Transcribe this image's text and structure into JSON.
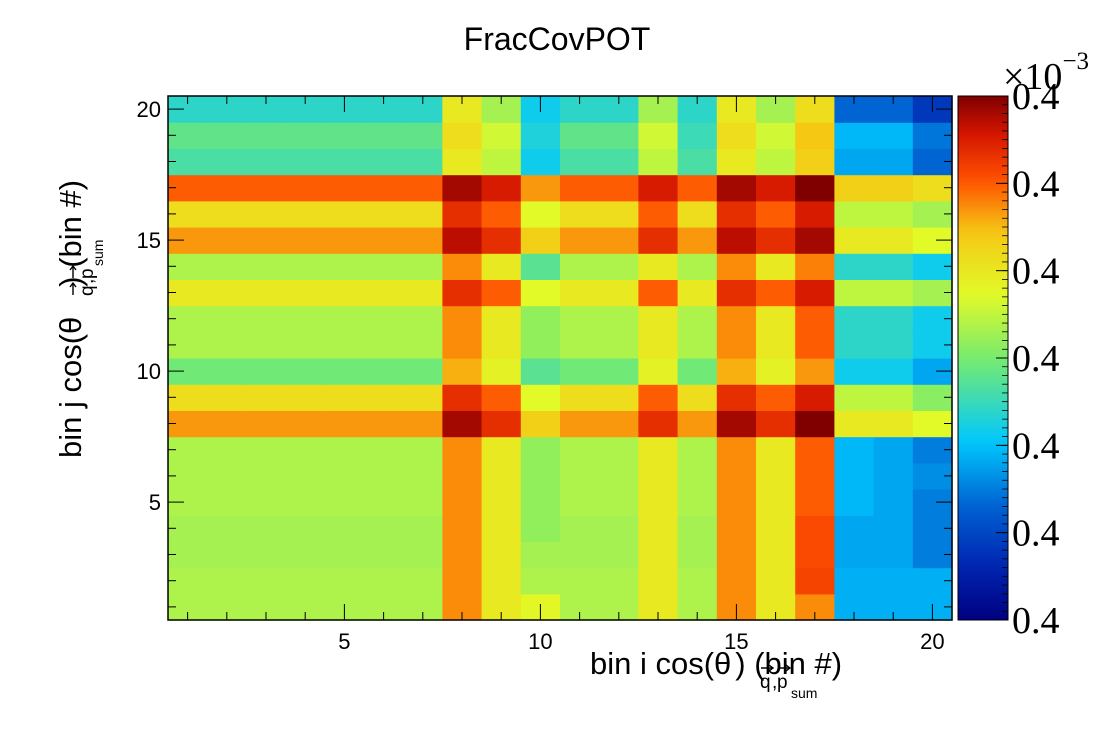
{
  "chart_data": {
    "type": "heatmap",
    "title": "FracCovPOT",
    "xlabel": {
      "prefix": "bin i cos(",
      "theta": "θ",
      "sub_q": "q",
      "sub_comma": ",",
      "sub_p": "p",
      "sub_sum": "sum",
      "suffix": ") (bin #)"
    },
    "ylabel": {
      "prefix": "bin j cos(",
      "theta": "θ",
      "sub_q": "q",
      "sub_comma": ",",
      "sub_p": "p",
      "sub_sum": "sum",
      "suffix": ") (bin #)"
    },
    "x_range": [
      0.5,
      20.5
    ],
    "y_range": [
      0.5,
      20.5
    ],
    "x_ticks": [
      5,
      10,
      15,
      20
    ],
    "y_ticks": [
      5,
      10,
      15,
      20
    ],
    "x_tick_labels": [
      "5",
      "10",
      "15",
      "20"
    ],
    "y_tick_labels": [
      "5",
      "10",
      "15",
      "20"
    ],
    "colorbar": {
      "exponent_label": "×10",
      "exponent_power": "−3",
      "tick_labels": [
        "0.4",
        "0.4",
        "0.4",
        "0.4",
        "0.4",
        "0.4",
        "0.4"
      ],
      "palette": "rainbow"
    },
    "bin_value_scale": "relative level 0 (dark blue) to 1 (dark red)",
    "values": [
      [
        0.56,
        0.56,
        0.56,
        0.56,
        0.56,
        0.56,
        0.56,
        0.79,
        0.66,
        0.63,
        0.56,
        0.56,
        0.66,
        0.56,
        0.79,
        0.66,
        0.79,
        0.31,
        0.31,
        0.31
      ],
      [
        0.56,
        0.56,
        0.56,
        0.56,
        0.56,
        0.56,
        0.56,
        0.79,
        0.66,
        0.56,
        0.56,
        0.56,
        0.66,
        0.56,
        0.79,
        0.66,
        0.86,
        0.31,
        0.31,
        0.31
      ],
      [
        0.55,
        0.55,
        0.55,
        0.55,
        0.55,
        0.55,
        0.55,
        0.79,
        0.66,
        0.55,
        0.55,
        0.55,
        0.66,
        0.55,
        0.79,
        0.66,
        0.85,
        0.3,
        0.3,
        0.25
      ],
      [
        0.55,
        0.55,
        0.55,
        0.55,
        0.55,
        0.55,
        0.55,
        0.79,
        0.66,
        0.53,
        0.55,
        0.55,
        0.66,
        0.55,
        0.79,
        0.66,
        0.85,
        0.3,
        0.3,
        0.25
      ],
      [
        0.56,
        0.56,
        0.56,
        0.56,
        0.56,
        0.56,
        0.56,
        0.79,
        0.66,
        0.53,
        0.56,
        0.56,
        0.66,
        0.56,
        0.79,
        0.66,
        0.83,
        0.32,
        0.3,
        0.25
      ],
      [
        0.56,
        0.56,
        0.56,
        0.56,
        0.56,
        0.56,
        0.56,
        0.79,
        0.66,
        0.53,
        0.56,
        0.56,
        0.66,
        0.56,
        0.79,
        0.66,
        0.83,
        0.32,
        0.3,
        0.27
      ],
      [
        0.56,
        0.56,
        0.56,
        0.56,
        0.56,
        0.56,
        0.56,
        0.79,
        0.66,
        0.53,
        0.56,
        0.56,
        0.66,
        0.56,
        0.79,
        0.66,
        0.83,
        0.32,
        0.3,
        0.25
      ],
      [
        0.78,
        0.78,
        0.78,
        0.78,
        0.78,
        0.78,
        0.78,
        0.97,
        0.89,
        0.72,
        0.78,
        0.78,
        0.89,
        0.78,
        0.97,
        0.89,
        1.0,
        0.66,
        0.66,
        0.62
      ],
      [
        0.69,
        0.69,
        0.69,
        0.69,
        0.69,
        0.69,
        0.69,
        0.89,
        0.83,
        0.62,
        0.69,
        0.69,
        0.83,
        0.69,
        0.89,
        0.83,
        0.92,
        0.58,
        0.58,
        0.52
      ],
      [
        0.49,
        0.49,
        0.49,
        0.49,
        0.49,
        0.49,
        0.49,
        0.76,
        0.64,
        0.46,
        0.49,
        0.49,
        0.64,
        0.49,
        0.76,
        0.64,
        0.78,
        0.36,
        0.36,
        0.3
      ],
      [
        0.56,
        0.56,
        0.56,
        0.56,
        0.56,
        0.56,
        0.56,
        0.79,
        0.66,
        0.53,
        0.56,
        0.56,
        0.66,
        0.56,
        0.79,
        0.66,
        0.83,
        0.4,
        0.4,
        0.36
      ],
      [
        0.56,
        0.56,
        0.56,
        0.56,
        0.56,
        0.56,
        0.56,
        0.79,
        0.66,
        0.53,
        0.56,
        0.56,
        0.66,
        0.56,
        0.79,
        0.66,
        0.83,
        0.4,
        0.4,
        0.36
      ],
      [
        0.66,
        0.66,
        0.66,
        0.66,
        0.66,
        0.66,
        0.66,
        0.89,
        0.83,
        0.62,
        0.66,
        0.66,
        0.83,
        0.66,
        0.89,
        0.83,
        0.92,
        0.58,
        0.58,
        0.55
      ],
      [
        0.56,
        0.56,
        0.56,
        0.56,
        0.56,
        0.56,
        0.56,
        0.79,
        0.66,
        0.46,
        0.56,
        0.56,
        0.66,
        0.56,
        0.79,
        0.66,
        0.8,
        0.4,
        0.4,
        0.36
      ],
      [
        0.78,
        0.78,
        0.78,
        0.78,
        0.78,
        0.78,
        0.78,
        0.95,
        0.89,
        0.72,
        0.78,
        0.78,
        0.89,
        0.78,
        0.95,
        0.89,
        0.97,
        0.66,
        0.66,
        0.62
      ],
      [
        0.69,
        0.69,
        0.69,
        0.69,
        0.69,
        0.69,
        0.69,
        0.89,
        0.83,
        0.62,
        0.69,
        0.69,
        0.83,
        0.69,
        0.89,
        0.83,
        0.92,
        0.58,
        0.58,
        0.55
      ],
      [
        0.83,
        0.83,
        0.83,
        0.83,
        0.83,
        0.83,
        0.83,
        0.97,
        0.92,
        0.78,
        0.83,
        0.83,
        0.92,
        0.83,
        0.97,
        0.92,
        1.0,
        0.72,
        0.72,
        0.69
      ],
      [
        0.44,
        0.44,
        0.44,
        0.44,
        0.44,
        0.44,
        0.44,
        0.66,
        0.58,
        0.36,
        0.44,
        0.44,
        0.58,
        0.44,
        0.66,
        0.58,
        0.72,
        0.3,
        0.3,
        0.22
      ],
      [
        0.47,
        0.47,
        0.47,
        0.47,
        0.47,
        0.47,
        0.47,
        0.69,
        0.6,
        0.38,
        0.47,
        0.47,
        0.6,
        0.42,
        0.69,
        0.6,
        0.74,
        0.32,
        0.32,
        0.24
      ],
      [
        0.4,
        0.4,
        0.4,
        0.4,
        0.4,
        0.4,
        0.4,
        0.66,
        0.55,
        0.36,
        0.4,
        0.4,
        0.55,
        0.4,
        0.66,
        0.55,
        0.69,
        0.22,
        0.22,
        0.14
      ]
    ]
  }
}
